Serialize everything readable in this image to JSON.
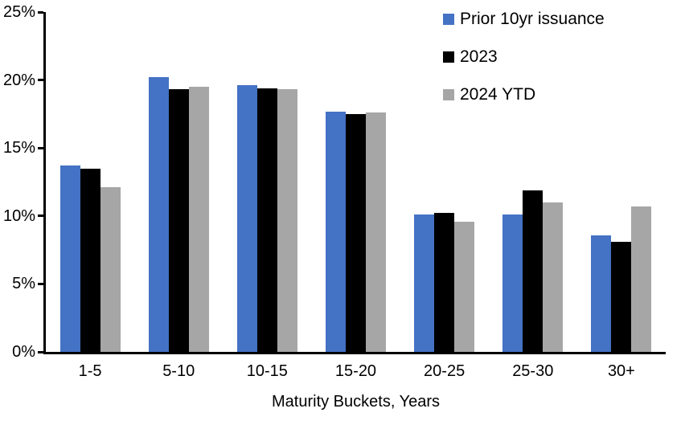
{
  "chart_data": {
    "type": "bar",
    "title": "",
    "categories": [
      "1-5",
      "5-10",
      "10-15",
      "15-20",
      "20-25",
      "25-30",
      "30+"
    ],
    "series": [
      {
        "name": "Prior 10yr issuance",
        "color": "#4472C4",
        "values": [
          13.7,
          20.2,
          19.6,
          17.7,
          10.1,
          10.1,
          8.6
        ]
      },
      {
        "name": "2023",
        "color": "#000000",
        "values": [
          13.5,
          19.3,
          19.4,
          17.5,
          10.2,
          11.9,
          8.1
        ]
      },
      {
        "name": "2024 YTD",
        "color": "#A6A6A6",
        "values": [
          12.1,
          19.5,
          19.3,
          17.6,
          9.6,
          11.0,
          10.7
        ]
      }
    ],
    "xlabel": "Maturity Buckets, Years",
    "ylabel": "",
    "ylim": [
      0,
      25
    ],
    "ytick_labels": [
      "25%",
      "20%",
      "15%",
      "10%",
      "5%",
      "0%"
    ],
    "grid": false,
    "legend_position": "top-right",
    "colors": {
      "axis": "#000000",
      "text": "#000000",
      "background": "#FFFFFF"
    }
  }
}
